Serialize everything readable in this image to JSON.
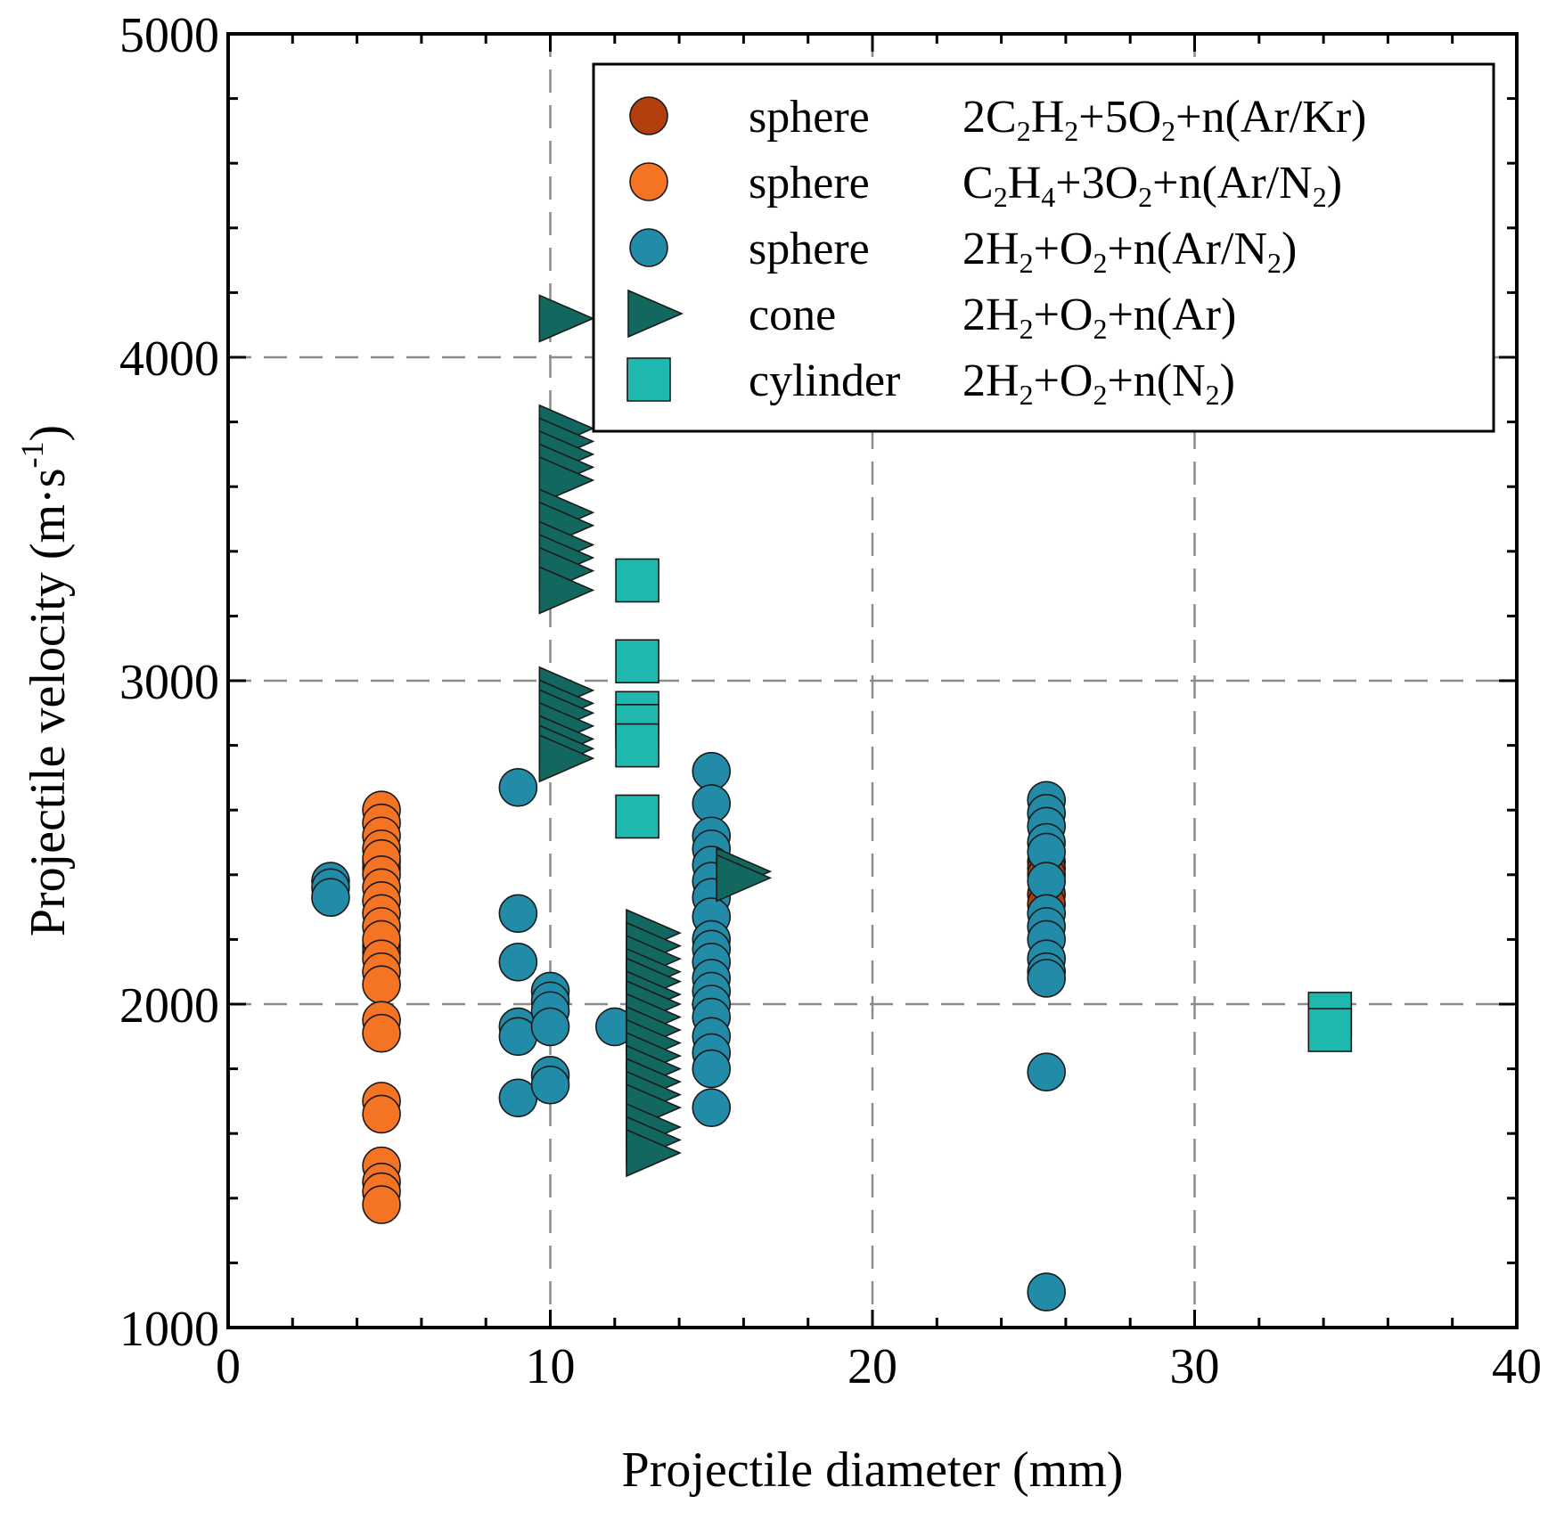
{
  "chart_data": {
    "type": "scatter",
    "title": "",
    "xlabel": "Projectile diameter (mm)",
    "ylabel": {
      "main": "Projectile velocity (m·s",
      "sup": "-1",
      "close": ")"
    },
    "xlim": [
      0,
      40
    ],
    "ylim": [
      1000,
      5000
    ],
    "xticks": [
      0,
      10,
      20,
      30,
      40
    ],
    "yticks": [
      1000,
      2000,
      3000,
      4000,
      5000
    ],
    "x_minor_step": 2,
    "y_minor_step": 200,
    "grid": {
      "x": [
        10,
        20,
        30
      ],
      "y": [
        2000,
        3000,
        4000
      ],
      "style": "dashed"
    },
    "legend_position": "top-right",
    "series": [
      {
        "name": "sphere",
        "mixture": [
          [
            "2C",
            "sub"
          ],
          [
            "2",
            "sub"
          ],
          [
            "H",
            "normal"
          ]
        ],
        "mixture_text": "2C2H2+5O2+n(Ar/Kr)",
        "marker": "circle",
        "color": "#b33f0e",
        "points": [
          [
            4.76,
            2440
          ],
          [
            4.76,
            2420
          ],
          [
            4.76,
            2180
          ],
          [
            4.76,
            2160
          ],
          [
            25.4,
            2440
          ],
          [
            25.4,
            2420
          ],
          [
            25.4,
            2400
          ],
          [
            25.4,
            2340
          ],
          [
            25.4,
            2310
          ]
        ]
      },
      {
        "name": "sphere",
        "mixture_text": "C2H4+3O2+n(Ar/N2)",
        "marker": "circle",
        "color": "#f47424",
        "points": [
          [
            4.76,
            2600
          ],
          [
            4.76,
            2560
          ],
          [
            4.76,
            2520
          ],
          [
            4.76,
            2480
          ],
          [
            4.76,
            2450
          ],
          [
            4.76,
            2400
          ],
          [
            4.76,
            2360
          ],
          [
            4.76,
            2320
          ],
          [
            4.76,
            2280
          ],
          [
            4.76,
            2240
          ],
          [
            4.76,
            2200
          ],
          [
            4.76,
            2140
          ],
          [
            4.76,
            2100
          ],
          [
            4.76,
            2060
          ],
          [
            4.76,
            1950
          ],
          [
            4.76,
            1910
          ],
          [
            4.76,
            1700
          ],
          [
            4.76,
            1660
          ],
          [
            4.76,
            1500
          ],
          [
            4.76,
            1450
          ],
          [
            4.76,
            1420
          ],
          [
            4.76,
            1380
          ]
        ]
      },
      {
        "name": "sphere",
        "mixture_text": "2H2+O2+n(Ar/N2)",
        "marker": "circle",
        "color": "#218ba8",
        "points": [
          [
            3.18,
            2380
          ],
          [
            3.18,
            2360
          ],
          [
            3.18,
            2330
          ],
          [
            9.0,
            2670
          ],
          [
            9.0,
            2280
          ],
          [
            9.0,
            2130
          ],
          [
            9.0,
            1930
          ],
          [
            9.0,
            1900
          ],
          [
            9.0,
            1710
          ],
          [
            10.0,
            2040
          ],
          [
            10.0,
            2010
          ],
          [
            10.0,
            1980
          ],
          [
            10.0,
            1930
          ],
          [
            10.0,
            1780
          ],
          [
            10.0,
            1750
          ],
          [
            12.0,
            1930
          ],
          [
            15.0,
            2720
          ],
          [
            15.0,
            2620
          ],
          [
            15.0,
            2520
          ],
          [
            15.0,
            2480
          ],
          [
            15.0,
            2430
          ],
          [
            15.0,
            2380
          ],
          [
            15.0,
            2330
          ],
          [
            15.0,
            2270
          ],
          [
            15.0,
            2200
          ],
          [
            15.0,
            2170
          ],
          [
            15.0,
            2130
          ],
          [
            15.0,
            2080
          ],
          [
            15.0,
            2040
          ],
          [
            15.0,
            2000
          ],
          [
            15.0,
            1960
          ],
          [
            15.0,
            1900
          ],
          [
            15.0,
            1850
          ],
          [
            15.0,
            1800
          ],
          [
            15.0,
            1680
          ],
          [
            25.4,
            2630
          ],
          [
            25.4,
            2590
          ],
          [
            25.4,
            2550
          ],
          [
            25.4,
            2500
          ],
          [
            25.4,
            2470
          ],
          [
            25.4,
            2380
          ],
          [
            25.4,
            2280
          ],
          [
            25.4,
            2240
          ],
          [
            25.4,
            2200
          ],
          [
            25.4,
            2140
          ],
          [
            25.4,
            2100
          ],
          [
            25.4,
            2080
          ],
          [
            25.4,
            1790
          ],
          [
            25.4,
            1110
          ]
        ]
      },
      {
        "name": "cone",
        "mixture_text": "2H2+O2+n(Ar)",
        "marker": "triangle-right",
        "color": "#12685f",
        "points": [
          [
            10.3,
            4120
          ],
          [
            10.3,
            3780
          ],
          [
            10.3,
            3740
          ],
          [
            10.3,
            3700
          ],
          [
            10.3,
            3660
          ],
          [
            10.3,
            3620
          ],
          [
            10.3,
            3520
          ],
          [
            10.3,
            3480
          ],
          [
            10.3,
            3420
          ],
          [
            10.3,
            3380
          ],
          [
            10.3,
            3340
          ],
          [
            10.3,
            3280
          ],
          [
            10.3,
            2970
          ],
          [
            10.3,
            2930
          ],
          [
            10.3,
            2900
          ],
          [
            10.3,
            2860
          ],
          [
            10.3,
            2820
          ],
          [
            10.3,
            2790
          ],
          [
            10.3,
            2760
          ],
          [
            15.8,
            2410
          ],
          [
            15.8,
            2390
          ],
          [
            13.0,
            2220
          ],
          [
            13.0,
            2180
          ],
          [
            13.0,
            2140
          ],
          [
            13.0,
            2100
          ],
          [
            13.0,
            2070
          ],
          [
            13.0,
            2030
          ],
          [
            13.0,
            2000
          ],
          [
            13.0,
            1960
          ],
          [
            13.0,
            1920
          ],
          [
            13.0,
            1880
          ],
          [
            13.0,
            1840
          ],
          [
            13.0,
            1800
          ],
          [
            13.0,
            1760
          ],
          [
            13.0,
            1720
          ],
          [
            13.0,
            1680
          ],
          [
            13.0,
            1620
          ],
          [
            13.0,
            1580
          ],
          [
            13.0,
            1540
          ]
        ]
      },
      {
        "name": "cylinder",
        "mixture_text": "2H2+O2+n(N2)",
        "marker": "square",
        "color": "#1fb8ae",
        "points": [
          [
            12.7,
            3310
          ],
          [
            12.7,
            3060
          ],
          [
            12.7,
            2900
          ],
          [
            12.7,
            2860
          ],
          [
            12.7,
            2800
          ],
          [
            12.7,
            2580
          ],
          [
            34.2,
            1970
          ],
          [
            34.2,
            1920
          ]
        ]
      }
    ]
  }
}
